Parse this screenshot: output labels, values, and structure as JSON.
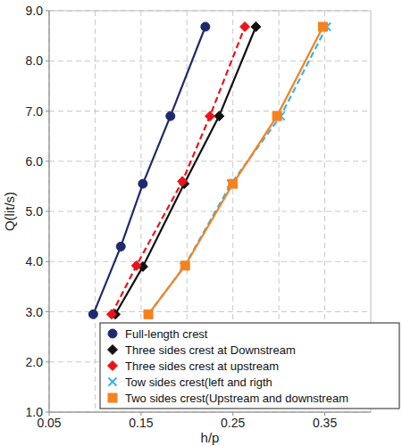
{
  "chart_data": {
    "type": "line",
    "x_label": "h/p",
    "y_label": "Q(lit/s)",
    "xlim": [
      0.05,
      0.4
    ],
    "xticks": [
      0.05,
      0.15,
      0.25,
      0.35
    ],
    "ylim": [
      1,
      9
    ],
    "yticks": [
      {
        "value": 1,
        "label": "1.0"
      },
      {
        "value": 2,
        "label": "2.0"
      },
      {
        "value": 3,
        "label": "3.0"
      },
      {
        "value": 4,
        "label": "4.0"
      },
      {
        "value": 5,
        "label": "5.0"
      },
      {
        "value": 6,
        "label": "6.0"
      },
      {
        "value": 7,
        "label": "7.0"
      },
      {
        "value": 8,
        "label": "8.0"
      },
      {
        "value": 9,
        "label": "9.0"
      }
    ],
    "grid": true,
    "legend": "lower right",
    "series": [
      {
        "name": "Full-length crest",
        "color": "#1f2a6e",
        "marker": "circle",
        "line_style": "solid",
        "x": [
          0.098,
          0.128,
          0.152,
          0.182,
          0.22
        ],
        "values": [
          2.95,
          4.3,
          5.55,
          6.9,
          8.68
        ]
      },
      {
        "name": "Three sides crest at Downstream",
        "color": "#111111",
        "marker": "diamond",
        "line_style": "solid",
        "x": [
          0.122,
          0.152,
          0.197,
          0.235,
          0.275
        ],
        "values": [
          2.95,
          3.9,
          5.55,
          6.9,
          8.68
        ]
      },
      {
        "name": "Three sides crest at upstream",
        "color": "#e8141a",
        "marker": "diamond",
        "line_style": "dashed",
        "x": [
          0.118,
          0.145,
          0.195,
          0.225,
          0.263
        ],
        "values": [
          2.95,
          3.92,
          5.6,
          6.9,
          8.68
        ]
      },
      {
        "name": "Tow sides crest(left and rigth",
        "color": "#3fb0e0",
        "marker": "x",
        "line_style": "dashed",
        "x": [
          0.158,
          0.197,
          0.248,
          0.302,
          0.352
        ],
        "values": [
          2.95,
          3.9,
          5.55,
          6.9,
          8.68
        ]
      },
      {
        "name": "Two sides crest(Upstream and downstream",
        "color": "#f58220",
        "marker": "square",
        "line_style": "solid",
        "x": [
          0.158,
          0.198,
          0.25,
          0.298,
          0.348
        ],
        "values": [
          2.95,
          3.92,
          5.55,
          6.9,
          8.68
        ]
      }
    ]
  }
}
